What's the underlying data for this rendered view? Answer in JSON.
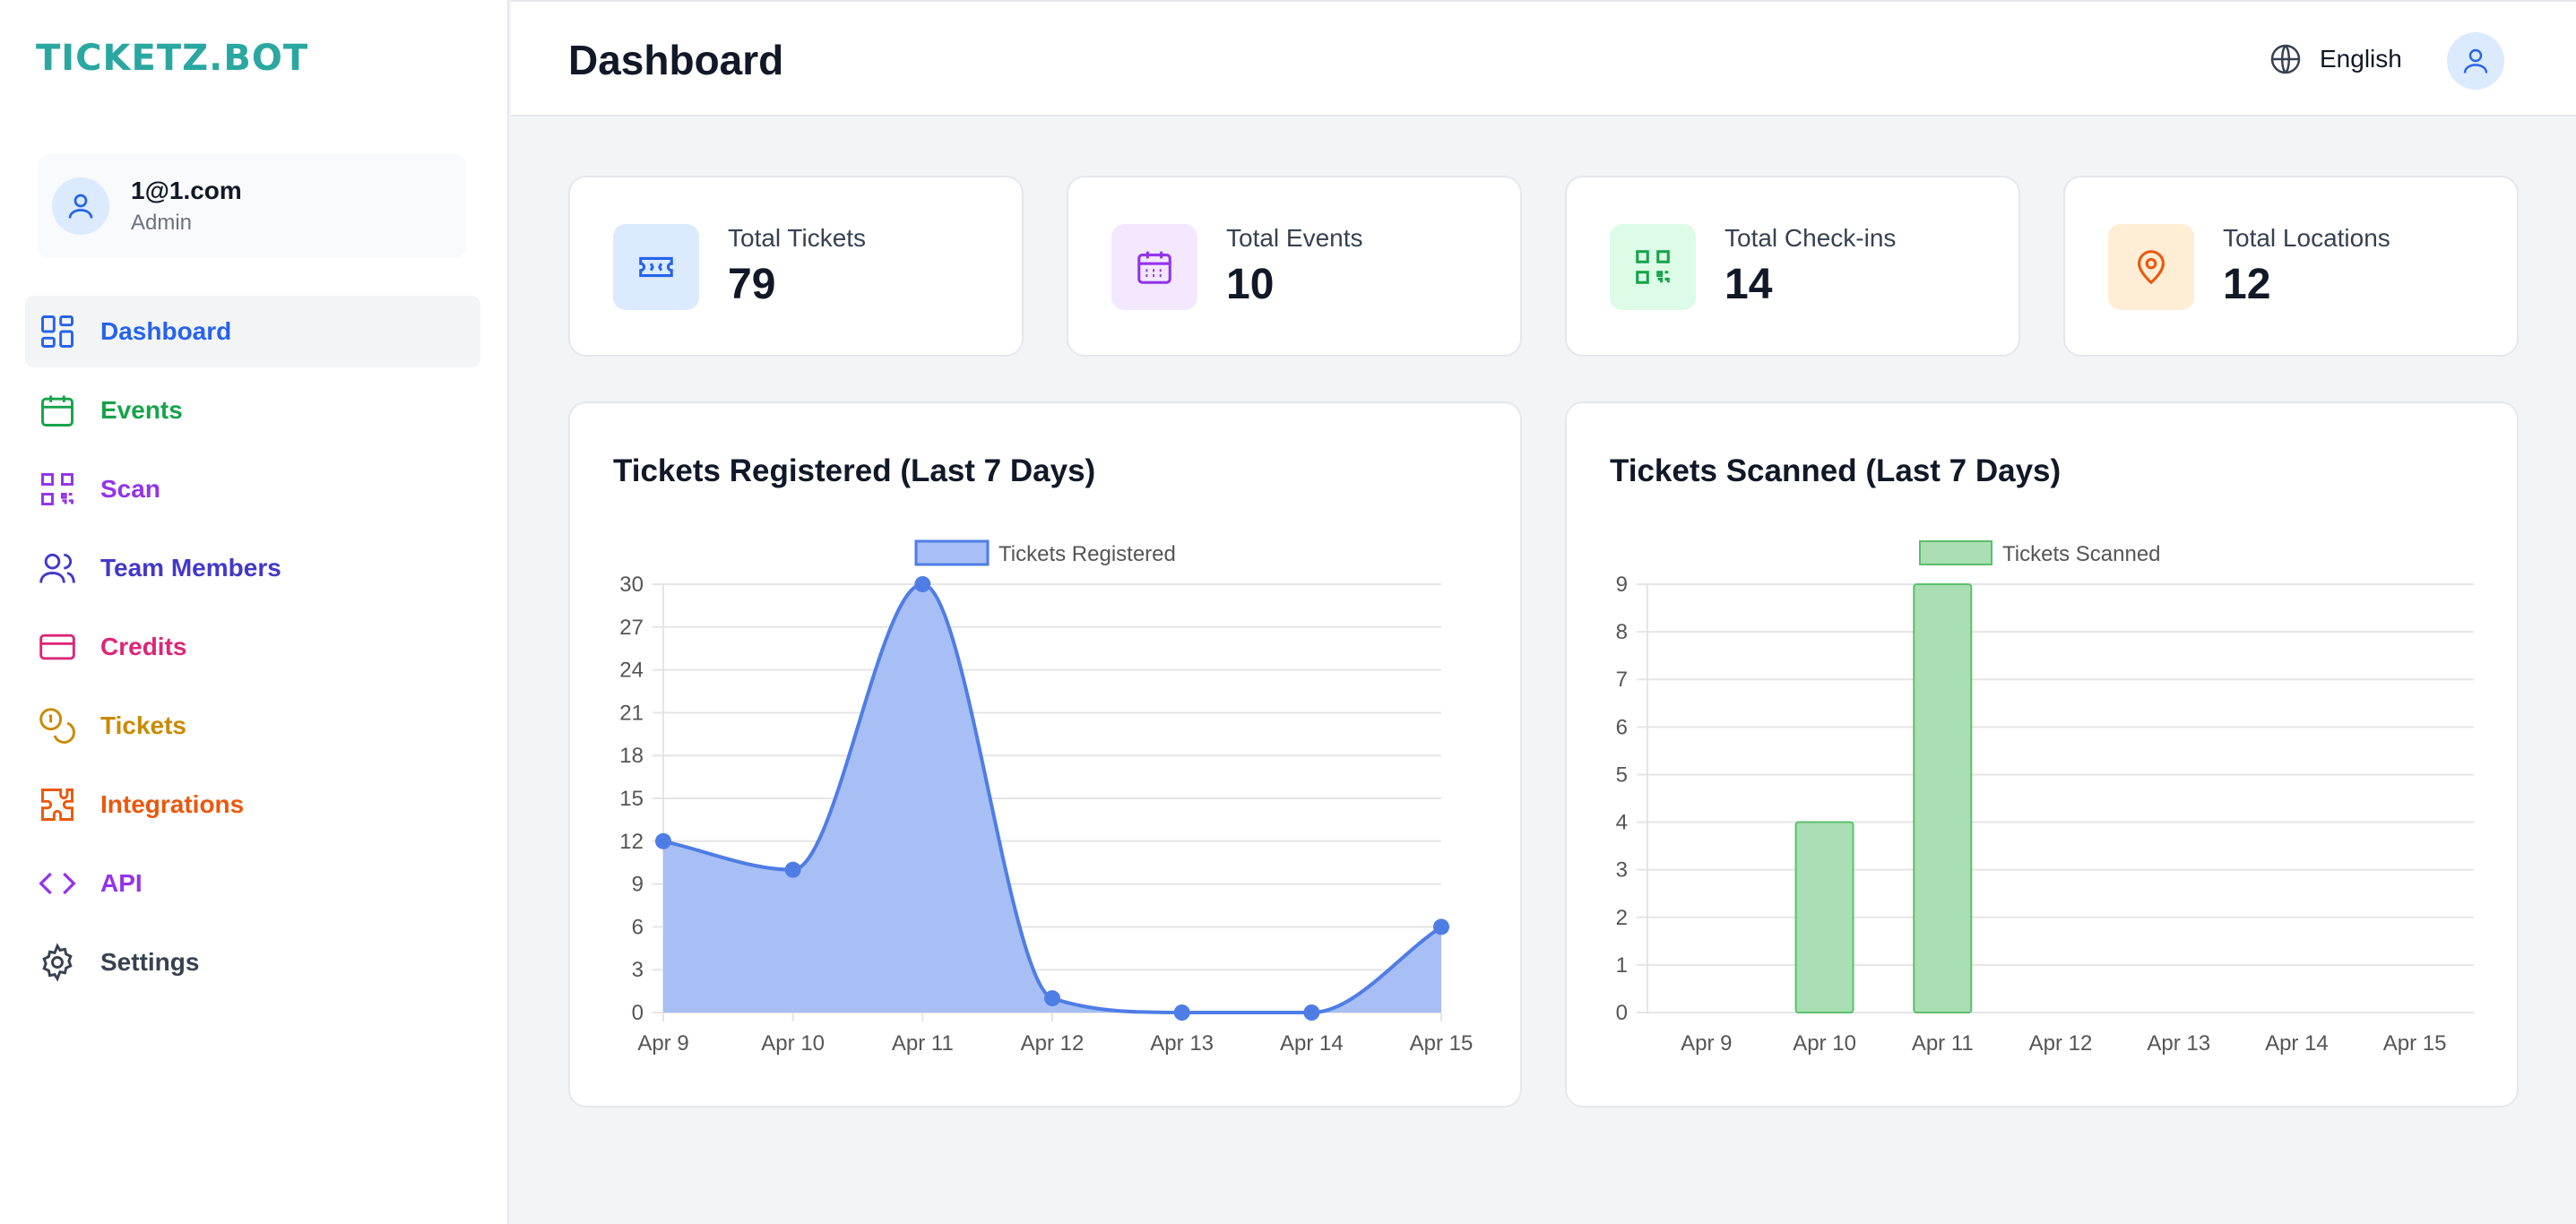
{
  "app": {
    "logo_text": "TICKETZ.BOT"
  },
  "user": {
    "email": "1@1.com",
    "role": "Admin"
  },
  "sidebar": {
    "items": [
      {
        "label": "Dashboard",
        "icon": "dashboard-icon",
        "color": "#2563eb",
        "active": true
      },
      {
        "label": "Events",
        "icon": "calendar-icon",
        "color": "#16a34a"
      },
      {
        "label": "Scan",
        "icon": "qr-code-icon",
        "color": "#9333ea"
      },
      {
        "label": "Team Members",
        "icon": "users-icon",
        "color": "#4338ca"
      },
      {
        "label": "Credits",
        "icon": "credit-card-icon",
        "color": "#db2777"
      },
      {
        "label": "Tickets",
        "icon": "coins-icon",
        "color": "#ca8a04"
      },
      {
        "label": "Integrations",
        "icon": "puzzle-icon",
        "color": "#ea580c"
      },
      {
        "label": "API",
        "icon": "code-icon",
        "color": "#9333ea"
      },
      {
        "label": "Settings",
        "icon": "gear-icon",
        "color": "#374151"
      }
    ]
  },
  "header": {
    "title": "Dashboard",
    "language": "English"
  },
  "stats": [
    {
      "label": "Total Tickets",
      "value": "79",
      "icon": "ticket-icon",
      "bg": "#dbeafe",
      "color": "#2563eb"
    },
    {
      "label": "Total Events",
      "value": "10",
      "icon": "calendar-icon",
      "bg": "#f3e8ff",
      "color": "#9333ea"
    },
    {
      "label": "Total Check-ins",
      "value": "14",
      "icon": "qr-code-icon",
      "bg": "#dcfce7",
      "color": "#16a34a"
    },
    {
      "label": "Total Locations",
      "value": "12",
      "icon": "map-pin-icon",
      "bg": "#ffedd5",
      "color": "#ea580c"
    }
  ],
  "chart_data": [
    {
      "type": "area",
      "title": "Tickets Registered (Last 7 Days)",
      "categories": [
        "Apr 9",
        "Apr 10",
        "Apr 11",
        "Apr 12",
        "Apr 13",
        "Apr 14",
        "Apr 15"
      ],
      "series": [
        {
          "name": "Tickets Registered",
          "values": [
            12,
            10,
            30,
            1,
            0,
            0,
            6
          ]
        }
      ],
      "yticks": [
        0,
        3,
        6,
        9,
        12,
        15,
        18,
        21,
        24,
        27,
        30
      ],
      "ylim": [
        0,
        30
      ],
      "grid": true,
      "legend": "top",
      "line_color": "#4f7de6",
      "fill_color": "#a7bff4"
    },
    {
      "type": "bar",
      "title": "Tickets Scanned (Last 7 Days)",
      "categories": [
        "Apr 9",
        "Apr 10",
        "Apr 11",
        "Apr 12",
        "Apr 13",
        "Apr 14",
        "Apr 15"
      ],
      "series": [
        {
          "name": "Tickets Scanned",
          "values": [
            0,
            4,
            9,
            0,
            0,
            0,
            0
          ]
        }
      ],
      "yticks": [
        0,
        1,
        2,
        3,
        4,
        5,
        6,
        7,
        8,
        9
      ],
      "ylim": [
        0,
        9
      ],
      "grid": true,
      "legend": "top",
      "bar_color": "#a9dfb2",
      "bar_border": "#5cbf6e"
    }
  ]
}
